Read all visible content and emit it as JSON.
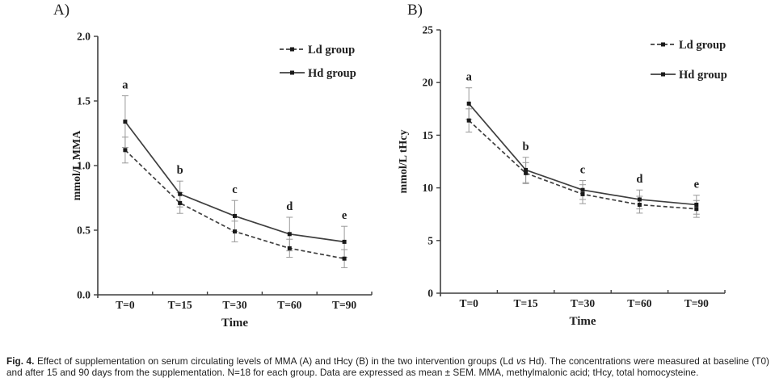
{
  "figure": {
    "panel_a_label": "A)",
    "panel_b_label": "B)"
  },
  "colors": {
    "line": "#3f3f3f",
    "marker": "#1a1a1a",
    "error_bar": "#999999",
    "text": "#1f1f1f",
    "background": "#ffffff"
  },
  "chart_data": [
    {
      "type": "line",
      "panel_label": "A)",
      "ylabel": "mmol/L MMA",
      "xlabel": "Time",
      "categories": [
        "T=0",
        "T=15",
        "T=30",
        "T=60",
        "T=90"
      ],
      "ylim": [
        0,
        2.0
      ],
      "yticks": [
        {
          "v": 0.0,
          "label": "0.0"
        },
        {
          "v": 0.5,
          "label": "0.5"
        },
        {
          "v": 1.0,
          "label": "1.0"
        },
        {
          "v": 1.5,
          "label": "1.5"
        },
        {
          "v": 2.0,
          "label": "2.0"
        }
      ],
      "letters": [
        "a",
        "b",
        "c",
        "d",
        "e"
      ],
      "grid": false,
      "legend_position": "top-right",
      "series": [
        {
          "name": "Ld group",
          "style": "dashed",
          "values": [
            1.12,
            0.71,
            0.49,
            0.36,
            0.28
          ],
          "errors": [
            0.1,
            0.08,
            0.08,
            0.07,
            0.07
          ]
        },
        {
          "name": "Hd group",
          "style": "solid",
          "values": [
            1.34,
            0.78,
            0.61,
            0.47,
            0.41
          ],
          "errors": [
            0.2,
            0.1,
            0.12,
            0.13,
            0.12
          ]
        }
      ]
    },
    {
      "type": "line",
      "panel_label": "B)",
      "ylabel": "mmol/L tHcy",
      "xlabel": "Time",
      "categories": [
        "T=0",
        "T=15",
        "T=30",
        "T=60",
        "T=90"
      ],
      "ylim": [
        0,
        25
      ],
      "yticks": [
        {
          "v": 0,
          "label": "0"
        },
        {
          "v": 5,
          "label": "5"
        },
        {
          "v": 10,
          "label": "10"
        },
        {
          "v": 15,
          "label": "15"
        },
        {
          "v": 20,
          "label": "20"
        },
        {
          "v": 25,
          "label": "25"
        }
      ],
      "letters": [
        "a",
        "b",
        "c",
        "d",
        "e"
      ],
      "grid": false,
      "legend_position": "top-right",
      "series": [
        {
          "name": "Ld group",
          "style": "dashed",
          "values": [
            16.4,
            11.4,
            9.4,
            8.4,
            8.0
          ],
          "errors": [
            1.1,
            1.0,
            0.9,
            0.8,
            0.8
          ]
        },
        {
          "name": "Hd group",
          "style": "solid",
          "values": [
            18.0,
            11.7,
            9.8,
            8.9,
            8.4
          ],
          "errors": [
            1.5,
            1.2,
            0.9,
            0.9,
            0.9
          ]
        }
      ]
    }
  ],
  "caption": {
    "label": "Fig. 4.",
    "part1": " Effect of supplementation on serum circulating levels of MMA (A) and tHcy (B) in the two intervention groups (Ld ",
    "vs": "vs",
    "part2": " Hd). The concentrations were measured at baseline (T0) and after 15 and 90 days from the supplementation. N=18 for each group. Data are expressed as mean ± SEM. MMA, methylmalonic acid; tHcy, total homocysteine."
  }
}
